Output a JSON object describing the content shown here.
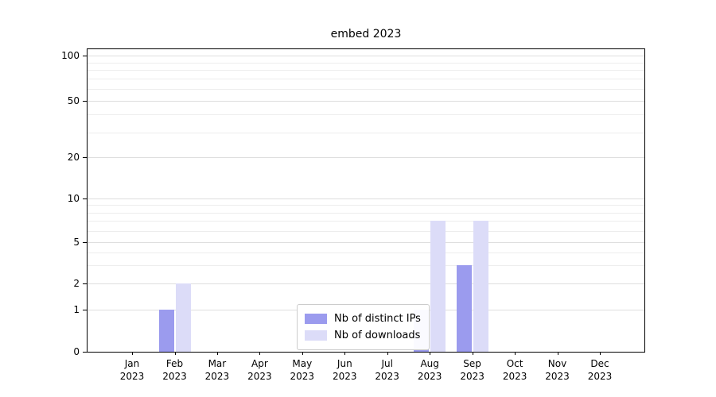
{
  "chart_data": {
    "type": "bar",
    "title": "embed 2023",
    "year": "2023",
    "categories": [
      "Jan",
      "Feb",
      "Mar",
      "Apr",
      "May",
      "Jun",
      "Jul",
      "Aug",
      "Sep",
      "Oct",
      "Nov",
      "Dec"
    ],
    "series": [
      {
        "name": "Nb of distinct IPs",
        "color": "#9b9bee",
        "values": [
          0,
          1,
          0,
          0,
          0,
          0,
          0,
          1,
          3,
          0,
          0,
          0
        ]
      },
      {
        "name": "Nb of downloads",
        "color": "#dcdcf8",
        "values": [
          0,
          2,
          0,
          0,
          0,
          0,
          0,
          7,
          7,
          0,
          0,
          0
        ]
      }
    ],
    "yticks": [
      0,
      1,
      2,
      5,
      10,
      20,
      50,
      100
    ],
    "yscale": "symlog",
    "ylim": [
      0,
      130
    ],
    "grid": true,
    "legend_position": "lower center (inside plot)"
  }
}
